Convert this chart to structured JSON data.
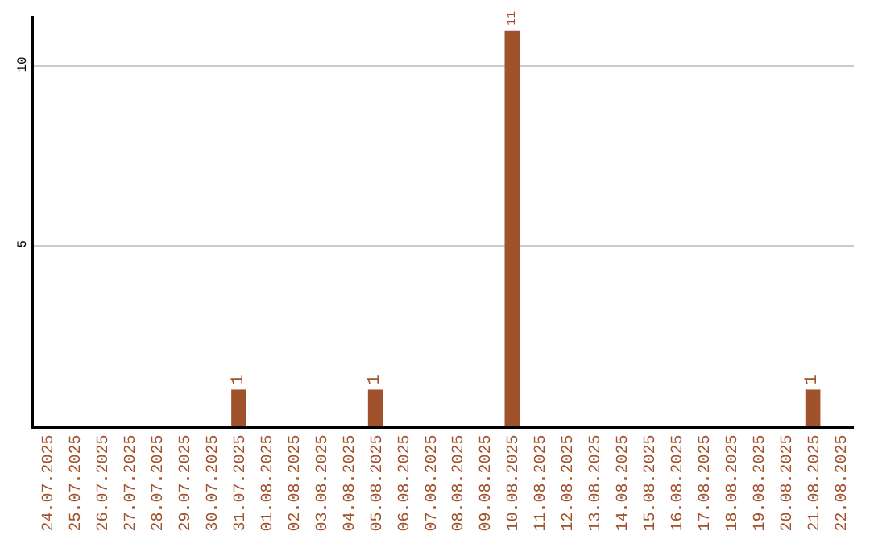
{
  "chart_data": {
    "type": "bar",
    "categories": [
      "24.07.2025",
      "25.07.2025",
      "26.07.2025",
      "27.07.2025",
      "28.07.2025",
      "29.07.2025",
      "30.07.2025",
      "31.07.2025",
      "01.08.2025",
      "02.08.2025",
      "03.08.2025",
      "04.08.2025",
      "05.08.2025",
      "06.08.2025",
      "07.08.2025",
      "08.08.2025",
      "09.08.2025",
      "10.08.2025",
      "11.08.2025",
      "12.08.2025",
      "13.08.2025",
      "14.08.2025",
      "15.08.2025",
      "16.08.2025",
      "17.08.2025",
      "18.08.2025",
      "19.08.2025",
      "20.08.2025",
      "21.08.2025",
      "22.08.2025"
    ],
    "values": [
      0,
      0,
      0,
      0,
      0,
      0,
      0,
      1,
      0,
      0,
      0,
      0,
      1,
      0,
      0,
      0,
      0,
      11,
      0,
      0,
      0,
      0,
      0,
      0,
      0,
      0,
      0,
      0,
      1,
      0
    ],
    "value_labels": [
      null,
      null,
      null,
      null,
      null,
      null,
      null,
      "1",
      null,
      null,
      null,
      null,
      "1",
      null,
      null,
      null,
      null,
      "11",
      null,
      null,
      null,
      null,
      null,
      null,
      null,
      null,
      null,
      null,
      "1",
      null
    ],
    "color": "#a0522d",
    "ylim": [
      0,
      11.4
    ],
    "yticks": [
      5,
      10
    ],
    "grid": "y"
  }
}
